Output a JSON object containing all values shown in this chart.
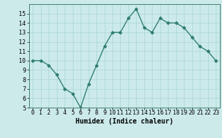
{
  "x": [
    0,
    1,
    2,
    3,
    4,
    5,
    6,
    7,
    8,
    9,
    10,
    11,
    12,
    13,
    14,
    15,
    16,
    17,
    18,
    19,
    20,
    21,
    22,
    23
  ],
  "y": [
    10,
    10,
    9.5,
    8.5,
    7,
    6.5,
    5,
    7.5,
    9.5,
    11.5,
    13,
    13,
    14.5,
    15.5,
    13.5,
    13,
    14.5,
    14,
    14,
    13.5,
    12.5,
    11.5,
    11,
    10
  ],
  "line_color": "#2e7d6e",
  "marker": "D",
  "marker_size": 2.5,
  "bg_color": "#cceaea",
  "grid_color": "#add8d8",
  "xlim": [
    -0.5,
    23.5
  ],
  "ylim": [
    5,
    16
  ],
  "yticks": [
    5,
    6,
    7,
    8,
    9,
    10,
    11,
    12,
    13,
    14,
    15
  ],
  "xticks": [
    0,
    1,
    2,
    3,
    4,
    5,
    6,
    7,
    8,
    9,
    10,
    11,
    12,
    13,
    14,
    15,
    16,
    17,
    18,
    19,
    20,
    21,
    22,
    23
  ],
  "xlabel": "Humidex (Indice chaleur)",
  "xlabel_fontsize": 7,
  "tick_fontsize": 6,
  "line_width": 1.0
}
